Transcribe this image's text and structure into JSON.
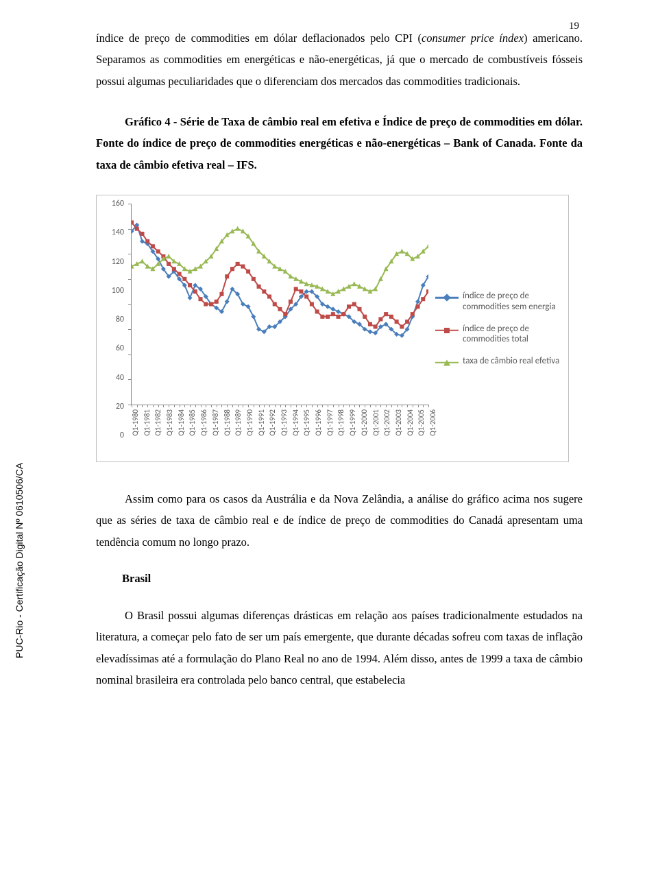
{
  "page_number": "19",
  "side_label": "PUC-Rio - Certificação Digital Nº 0610506/CA",
  "para1_part1": "índice de preço de commodities em dólar deflacionados pelo CPI (",
  "para1_italic": "consumer price índex",
  "para1_part2": ") americano. Separamos as commodities em energéticas e não-energéticas, já que o mercado de combustíveis fósseis possui algumas peculiaridades que o diferenciam dos mercados das commodities tradicionais.",
  "caption": "Gráfico 4 - Série de Taxa de câmbio real em efetiva e Índice de preço de commodities em dólar. Fonte do índice de preço de commodities energéticas e não-energéticas – Bank of Canada. Fonte da taxa de câmbio efetiva real – IFS.",
  "para2": "Assim como para os casos da Austrália e da Nova Zelândia, a análise do gráfico acima nos sugere que as séries de taxa de câmbio real e de índice de preço de commodities do Canadá apresentam uma tendência comum no longo prazo.",
  "subheading": "Brasil",
  "para3": "O Brasil possui algumas diferenças drásticas em relação aos países tradicionalmente estudados na literatura, a começar pelo fato de ser um país emergente, que durante décadas sofreu com taxas de inflação elevadíssimas até a formulação do Plano Real no ano de 1994. Além disso, antes de 1999 a taxa de câmbio nominal brasileira era controlada pelo banco central, que estabelecia",
  "chart": {
    "type": "line",
    "ylim": [
      0,
      160
    ],
    "ytick_step": 20,
    "yticks": [
      0,
      20,
      40,
      60,
      80,
      100,
      120,
      140,
      160
    ],
    "x_categories": [
      "Q1-1980",
      "Q1-1981",
      "Q1-1982",
      "Q1-1983",
      "Q1-1984",
      "Q1-1985",
      "Q1-1986",
      "Q1-1987",
      "Q1-1988",
      "Q1-1989",
      "Q1-1990",
      "Q1-1991",
      "Q1-1992",
      "Q1-1993",
      "Q1-1994",
      "Q1-1995",
      "Q1-1996",
      "Q1-1997",
      "Q1-1998",
      "Q1-1999",
      "Q1-2000",
      "Q1-2001",
      "Q1-2002",
      "Q1-2003",
      "Q1-2004",
      "Q1-2005",
      "Q1-2006"
    ],
    "series": [
      {
        "name": "índice de preço de commodities sem energia",
        "color": "#4a7ebb",
        "marker": "diamond",
        "values": [
          138,
          143,
          130,
          128,
          122,
          116,
          108,
          102,
          106,
          100,
          95,
          85,
          95,
          92,
          86,
          80,
          77,
          74,
          82,
          92,
          88,
          80,
          78,
          70,
          60,
          58,
          62,
          62,
          66,
          70,
          76,
          80,
          86,
          90,
          90,
          86,
          80,
          78,
          76,
          74,
          72,
          70,
          66,
          64,
          60,
          58,
          57,
          62,
          64,
          60,
          56,
          55,
          60,
          70,
          82,
          95,
          102
        ]
      },
      {
        "name": "índice de preço de commodities total",
        "color": "#be4b48",
        "marker": "square",
        "values": [
          145,
          140,
          136,
          130,
          126,
          122,
          118,
          112,
          108,
          104,
          100,
          95,
          90,
          84,
          80,
          80,
          82,
          88,
          102,
          108,
          112,
          110,
          106,
          100,
          94,
          90,
          86,
          80,
          76,
          72,
          82,
          92,
          90,
          86,
          80,
          74,
          70,
          70,
          72,
          70,
          72,
          78,
          80,
          76,
          70,
          64,
          62,
          68,
          72,
          70,
          66,
          62,
          66,
          72,
          78,
          84,
          90
        ]
      },
      {
        "name": "taxa de câmbio real efetiva",
        "color": "#98b954",
        "marker": "triangle",
        "values": [
          110,
          112,
          114,
          110,
          108,
          112,
          116,
          118,
          114,
          112,
          108,
          106,
          108,
          110,
          114,
          118,
          124,
          130,
          135,
          138,
          140,
          138,
          134,
          128,
          122,
          118,
          114,
          110,
          108,
          106,
          102,
          100,
          98,
          96,
          95,
          94,
          92,
          90,
          88,
          90,
          92,
          94,
          96,
          94,
          92,
          90,
          92,
          100,
          108,
          114,
          120,
          122,
          120,
          116,
          118,
          122,
          126
        ]
      }
    ],
    "background_color": "#ffffff",
    "axis_color": "#888888",
    "tick_font_color": "#595959",
    "tick_fontsize": 12
  }
}
